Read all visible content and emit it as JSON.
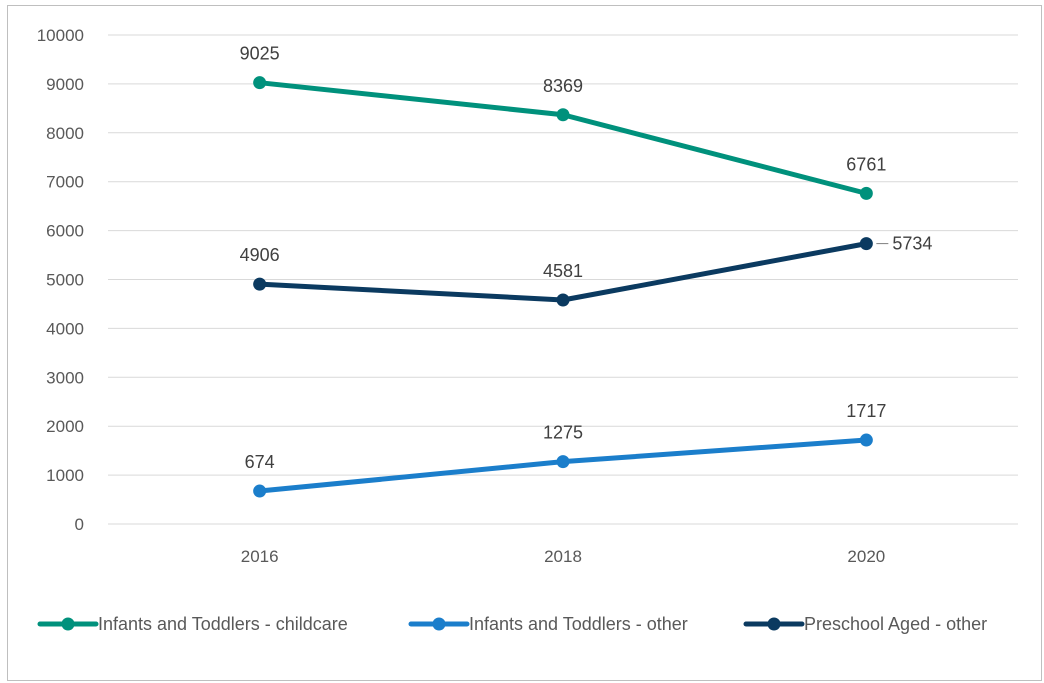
{
  "chart_data": {
    "type": "line",
    "x": [
      "2016",
      "2018",
      "2020"
    ],
    "ylim": [
      0,
      10000
    ],
    "yticks": [
      0,
      1000,
      2000,
      3000,
      4000,
      5000,
      6000,
      7000,
      8000,
      9000,
      10000
    ],
    "grid": true,
    "legend_position": "bottom",
    "series": [
      {
        "name": "Infants and Toddlers - childcare",
        "values": [
          9025,
          8369,
          6761
        ],
        "color": "#00917c"
      },
      {
        "name": "Infants and Toddlers - other",
        "values": [
          674,
          1275,
          1717
        ],
        "color": "#1b7ecb"
      },
      {
        "name": "Preschool Aged - other",
        "values": [
          4906,
          4581,
          5734
        ],
        "color": "#0b3a60"
      }
    ]
  }
}
